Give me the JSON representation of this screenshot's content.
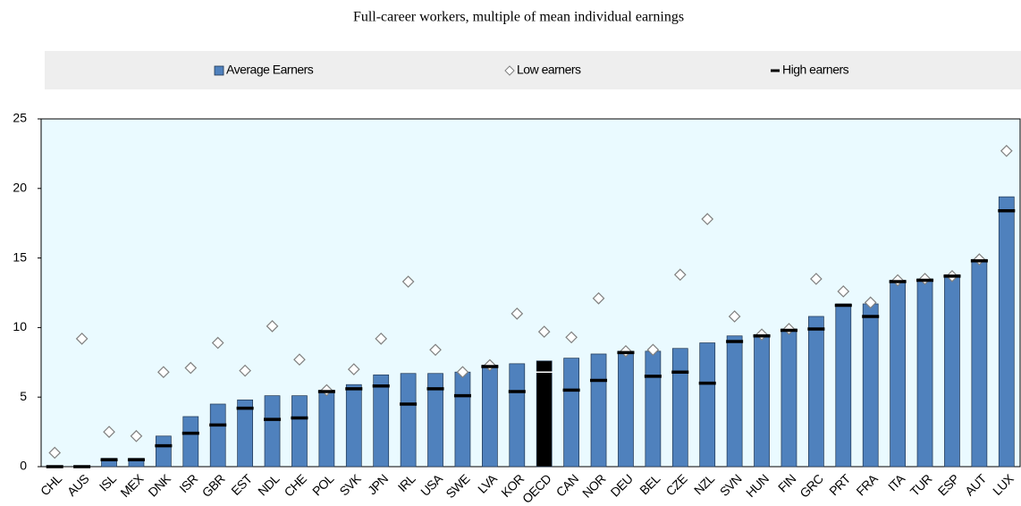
{
  "chart_data": {
    "type": "bar",
    "title": "Full-career workers, multiple of mean individual earnings",
    "categories": [
      "CHL",
      "AUS",
      "ISL",
      "MEX",
      "DNK",
      "ISR",
      "GBR",
      "EST",
      "NDL",
      "CHE",
      "POL",
      "SVK",
      "JPN",
      "IRL",
      "USA",
      "SWE",
      "LVA",
      "KOR",
      "OECD",
      "CAN",
      "NOR",
      "DEU",
      "BEL",
      "CZE",
      "NZL",
      "SVN",
      "HUN",
      "FIN",
      "GRC",
      "PRT",
      "FRA",
      "ITA",
      "TUR",
      "ESP",
      "AUT",
      "LUX"
    ],
    "series": [
      {
        "name": "Average Earners",
        "marker": "bar",
        "color": "#4f81bd",
        "colors": [
          "#4f81bd",
          "#4f81bd",
          "#4f81bd",
          "#4f81bd",
          "#4f81bd",
          "#4f81bd",
          "#4f81bd",
          "#4f81bd",
          "#4f81bd",
          "#4f81bd",
          "#4f81bd",
          "#4f81bd",
          "#4f81bd",
          "#4f81bd",
          "#4f81bd",
          "#4f81bd",
          "#4f81bd",
          "#4f81bd",
          "#000000",
          "#4f81bd",
          "#4f81bd",
          "#4f81bd",
          "#4f81bd",
          "#4f81bd",
          "#4f81bd",
          "#4f81bd",
          "#4f81bd",
          "#4f81bd",
          "#4f81bd",
          "#4f81bd",
          "#4f81bd",
          "#4f81bd",
          "#4f81bd",
          "#4f81bd",
          "#4f81bd",
          "#4f81bd"
        ],
        "values": [
          0.05,
          0.05,
          0.6,
          0.6,
          2.2,
          3.6,
          4.5,
          4.8,
          5.1,
          5.1,
          5.5,
          5.9,
          6.6,
          6.7,
          6.7,
          6.8,
          7.3,
          7.4,
          7.6,
          7.8,
          8.1,
          8.3,
          8.3,
          8.5,
          8.9,
          9.4,
          9.5,
          9.9,
          10.8,
          11.7,
          11.7,
          13.4,
          13.5,
          13.8,
          14.9,
          19.4
        ]
      },
      {
        "name": "Low earners",
        "marker": "diamond",
        "color": "#808080",
        "values": [
          1.0,
          9.2,
          2.5,
          2.2,
          6.8,
          7.1,
          8.9,
          6.9,
          10.1,
          7.7,
          5.5,
          7.0,
          9.2,
          13.3,
          8.4,
          6.8,
          7.3,
          11.0,
          9.7,
          9.3,
          12.1,
          8.3,
          8.4,
          13.8,
          17.8,
          10.8,
          9.5,
          9.9,
          13.5,
          12.6,
          11.8,
          13.4,
          13.5,
          13.7,
          14.9,
          22.7
        ]
      },
      {
        "name": "High earners",
        "marker": "dash",
        "color": "#000000",
        "values": [
          0,
          0,
          0.5,
          0.5,
          1.5,
          2.4,
          3.0,
          4.2,
          3.4,
          3.5,
          5.4,
          5.6,
          5.8,
          4.5,
          5.6,
          5.1,
          7.2,
          5.4,
          6.8,
          5.5,
          6.2,
          8.2,
          6.5,
          6.8,
          6.0,
          9.0,
          9.4,
          9.8,
          9.9,
          11.6,
          10.8,
          13.3,
          13.4,
          13.7,
          14.8,
          18.4
        ]
      }
    ],
    "ylim": [
      0,
      25
    ],
    "yticks": [
      0,
      5,
      10,
      15,
      20,
      25
    ],
    "plot_background": "#eafaff",
    "legend_background": "#eeeeee",
    "grid": false
  }
}
